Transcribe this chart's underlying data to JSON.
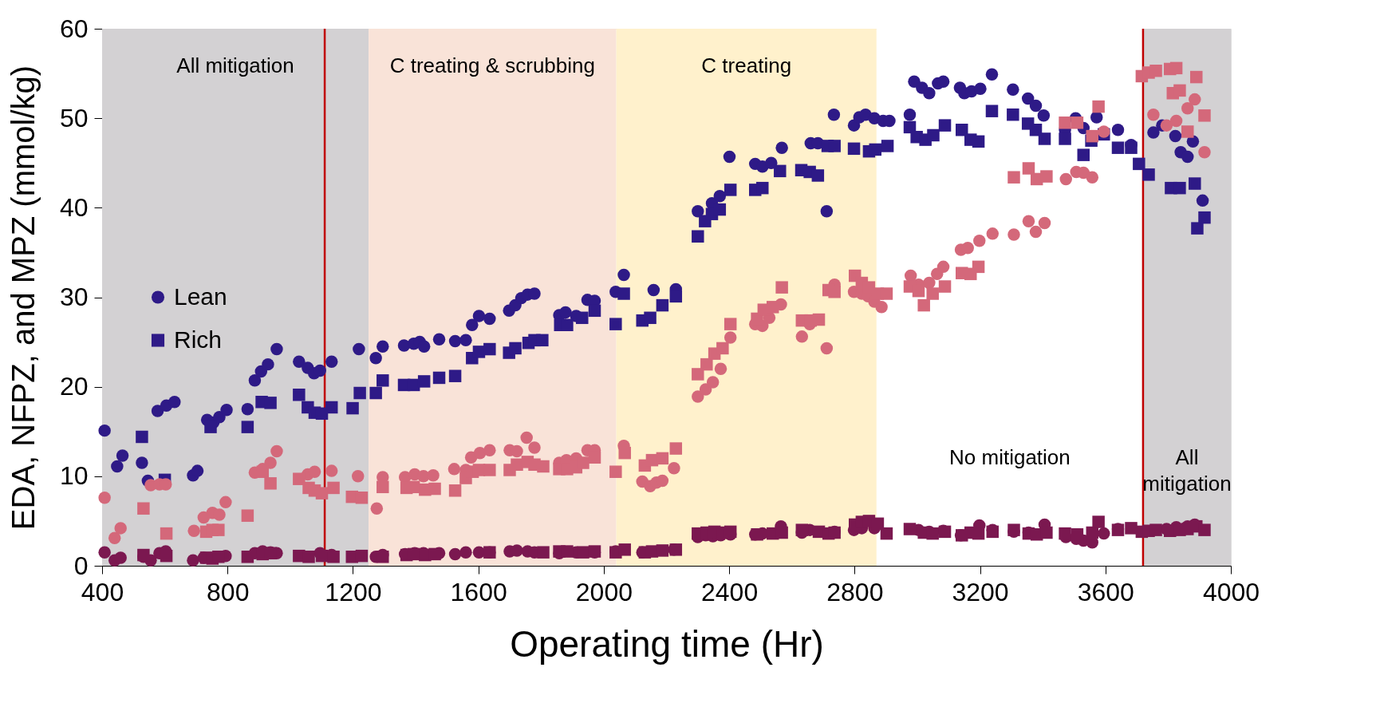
{
  "chart_data": {
    "type": "scatter",
    "xlabel": "Operating time (Hr)",
    "ylabel": "EDA, NFPZ, and MPZ (mmol/kg)",
    "xlim": [
      400,
      4000
    ],
    "xticks": [
      400,
      800,
      1200,
      1600,
      2000,
      2400,
      2800,
      3200,
      3600,
      4000
    ],
    "ylim": [
      0,
      60
    ],
    "yticks": [
      0,
      10,
      20,
      30,
      40,
      50,
      60
    ],
    "grid": false,
    "legend": "left",
    "bands": [
      {
        "axis": "x",
        "from": 400,
        "to": 1250,
        "label": "All mitigation",
        "color": "#d3d1d3"
      },
      {
        "axis": "x",
        "from": 1250,
        "to": 2040,
        "label": "C treating & scrubbing",
        "color": "#f9e3d8"
      },
      {
        "axis": "x",
        "from": 2040,
        "to": 2870,
        "label": "C treating",
        "color": "#fff1cc"
      },
      {
        "axis": "x",
        "from": 2870,
        "to": 3720,
        "label": "No mitigation",
        "color": "#ffffff"
      },
      {
        "axis": "x",
        "from": 3720,
        "to": 4000,
        "label": "All mitigation",
        "color": "#d3d1d3"
      }
    ],
    "ref_lines": [
      {
        "axis": "x",
        "value": 1110,
        "color": "#c00000"
      },
      {
        "axis": "x",
        "value": 3720,
        "color": "#c00000"
      }
    ],
    "series": [
      {
        "name": "Lean",
        "marker": "circle",
        "color": "#2e1a87",
        "x": [
          408,
          448,
          465,
          527,
          546,
          577,
          605,
          631,
          690,
          704,
          735,
          755,
          774,
          797,
          864,
          887,
          907,
          929,
          957,
          1028,
          1056,
          1076,
          1095,
          1132,
          1219,
          1273,
          1295,
          1363,
          1394,
          1413,
          1427,
          1475,
          1526,
          1560,
          1580,
          1602,
          1636,
          1698,
          1718,
          1737,
          1757,
          1779,
          1858,
          1878,
          1912,
          1948,
          1971,
          2038,
          2064,
          2159,
          2230,
          2300,
          2345,
          2370,
          2401,
          2483,
          2506,
          2534,
          2568,
          2660,
          2683,
          2711,
          2734,
          2798,
          2815,
          2835,
          2863,
          2891,
          2911,
          2976,
          2990,
          3015,
          3038,
          3066,
          3083,
          3136,
          3150,
          3173,
          3201,
          3238,
          3305,
          3353,
          3378,
          3403,
          3471,
          3505,
          3530,
          3572,
          3640,
          3682,
          3753,
          3781,
          3823,
          3840,
          3862,
          3879,
          3910
        ],
        "values": [
          15.1,
          11.1,
          12.3,
          11.5,
          9.5,
          17.3,
          17.9,
          18.3,
          10.1,
          10.6,
          16.3,
          16.0,
          16.6,
          17.4,
          17.5,
          20.7,
          21.7,
          22.5,
          24.2,
          22.8,
          22.1,
          21.5,
          21.8,
          22.8,
          24.2,
          23.2,
          24.5,
          24.6,
          24.8,
          25.0,
          24.5,
          25.3,
          25.1,
          25.2,
          26.9,
          27.9,
          27.6,
          28.5,
          29.1,
          29.9,
          30.3,
          30.4,
          28.0,
          28.3,
          27.9,
          29.7,
          29.6,
          30.6,
          32.5,
          30.8,
          30.9,
          39.6,
          40.5,
          41.3,
          45.7,
          44.9,
          44.6,
          45.0,
          46.7,
          47.2,
          47.2,
          39.6,
          50.4,
          49.2,
          50.1,
          50.4,
          50.0,
          49.7,
          49.7,
          50.4,
          54.1,
          53.4,
          52.8,
          53.9,
          54.1,
          53.4,
          52.8,
          53.0,
          53.3,
          54.9,
          53.2,
          52.2,
          51.4,
          50.3,
          48.7,
          50.0,
          48.9,
          50.1,
          48.7,
          47.0,
          48.4,
          49.2,
          48.0,
          46.2,
          45.7,
          47.4,
          40.8
        ]
      },
      {
        "name": "Rich",
        "marker": "square",
        "color": "#2e1a87",
        "x": [
          527,
          600,
          746,
          864,
          909,
          937,
          1028,
          1056,
          1078,
          1101,
          1132,
          1199,
          1222,
          1273,
          1295,
          1363,
          1394,
          1427,
          1475,
          1526,
          1580,
          1602,
          1636,
          1698,
          1718,
          1760,
          1779,
          1804,
          1861,
          1883,
          1931,
          1971,
          2038,
          2064,
          2123,
          2148,
          2187,
          2230,
          2300,
          2323,
          2345,
          2370,
          2404,
          2483,
          2506,
          2562,
          2630,
          2657,
          2683,
          2714,
          2736,
          2798,
          2846,
          2866,
          2905,
          2976,
          2998,
          3026,
          3051,
          3088,
          3142,
          3170,
          3195,
          3238,
          3305,
          3353,
          3378,
          3406,
          3471,
          3530,
          3555,
          3595,
          3640,
          3682,
          3707,
          3738,
          3809,
          3837,
          3885,
          3893,
          3916
        ],
        "values": [
          14.4,
          9.6,
          15.5,
          15.5,
          18.3,
          18.2,
          19.1,
          17.7,
          17.1,
          17.0,
          17.7,
          17.6,
          19.3,
          19.3,
          20.7,
          20.2,
          20.2,
          20.6,
          21.0,
          21.2,
          23.2,
          23.9,
          24.2,
          23.8,
          24.3,
          24.9,
          25.2,
          25.2,
          26.9,
          26.9,
          27.7,
          28.5,
          27.0,
          30.4,
          27.4,
          27.7,
          29.1,
          30.1,
          36.8,
          38.5,
          39.3,
          39.8,
          42.0,
          42.0,
          42.2,
          44.1,
          44.2,
          44.0,
          43.6,
          46.9,
          46.9,
          46.6,
          46.3,
          46.5,
          46.9,
          49.0,
          47.9,
          47.6,
          48.1,
          49.2,
          48.7,
          47.6,
          47.4,
          50.8,
          50.4,
          49.4,
          48.7,
          47.7,
          47.7,
          45.9,
          47.5,
          48.2,
          46.7,
          46.7,
          44.9,
          43.7,
          42.2,
          42.2,
          42.7,
          37.7,
          38.9
        ]
      },
      {
        "name": null,
        "marker": "circle",
        "color": "#d4687a",
        "x": [
          408,
          440,
          459,
          555,
          583,
          603,
          693,
          724,
          752,
          774,
          794,
          887,
          912,
          937,
          957,
          1056,
          1078,
          1132,
          1216,
          1276,
          1295,
          1366,
          1397,
          1425,
          1456,
          1523,
          1560,
          1577,
          1605,
          1636,
          1700,
          1723,
          1754,
          1779,
          1858,
          1881,
          1912,
          1948,
          1971,
          2064,
          2123,
          2148,
          2168,
          2187,
          2224,
          2300,
          2325,
          2348,
          2373,
          2404,
          2483,
          2506,
          2528,
          2565,
          2632,
          2657,
          2711,
          2736,
          2798,
          2823,
          2843,
          2863,
          2886,
          2979,
          3004,
          3038,
          3063,
          3083,
          3139,
          3161,
          3198,
          3240,
          3308,
          3355,
          3378,
          3406,
          3474,
          3507,
          3530,
          3558,
          3595,
          3753,
          3795,
          3826,
          3862,
          3885,
          3916
        ],
        "values": [
          7.6,
          3.1,
          4.2,
          9.0,
          9.1,
          9.1,
          3.9,
          5.4,
          5.9,
          5.7,
          7.1,
          10.4,
          10.8,
          11.5,
          12.8,
          10.2,
          10.5,
          10.6,
          10.0,
          6.4,
          9.9,
          9.9,
          10.2,
          10.0,
          10.1,
          10.8,
          10.7,
          12.1,
          12.6,
          12.9,
          12.9,
          12.8,
          14.3,
          13.2,
          11.5,
          11.8,
          12.0,
          12.9,
          12.9,
          13.4,
          9.4,
          8.9,
          9.3,
          9.5,
          10.9,
          18.9,
          19.7,
          20.5,
          22.0,
          25.5,
          27.0,
          26.8,
          27.7,
          29.2,
          25.6,
          27.0,
          24.3,
          31.4,
          30.6,
          30.4,
          30.1,
          29.5,
          28.9,
          32.4,
          31.4,
          31.6,
          32.6,
          33.4,
          35.3,
          35.5,
          36.3,
          37.1,
          37.0,
          38.5,
          37.3,
          38.3,
          43.2,
          44.0,
          43.9,
          43.4,
          48.5,
          50.4,
          49.2,
          49.7,
          51.1,
          52.1,
          46.2
        ]
      },
      {
        "name": null,
        "marker": "square",
        "color": "#d4687a",
        "x": [
          532,
          605,
          732,
          752,
          771,
          864,
          912,
          937,
          1028,
          1059,
          1078,
          1101,
          1138,
          1197,
          1228,
          1295,
          1371,
          1394,
          1430,
          1461,
          1526,
          1560,
          1582,
          1602,
          1636,
          1700,
          1723,
          1757,
          1779,
          1807,
          1858,
          1883,
          1912,
          1934,
          1971,
          2038,
          2067,
          2131,
          2154,
          2187,
          2230,
          2300,
          2328,
          2353,
          2379,
          2404,
          2489,
          2510,
          2539,
          2568,
          2632,
          2660,
          2686,
          2717,
          2736,
          2801,
          2823,
          2846,
          2874,
          2902,
          2976,
          3004,
          3021,
          3049,
          3088,
          3142,
          3170,
          3195,
          3308,
          3355,
          3381,
          3412,
          3471,
          3510,
          3558,
          3578,
          3716,
          3738,
          3761,
          3806,
          3826,
          3815,
          3837,
          3862,
          3890,
          3916
        ],
        "values": [
          6.4,
          3.6,
          3.8,
          4.0,
          4.0,
          5.6,
          10.5,
          9.2,
          9.7,
          8.7,
          8.4,
          8.1,
          8.7,
          7.7,
          7.6,
          8.8,
          8.7,
          8.8,
          8.5,
          8.6,
          8.4,
          9.8,
          10.5,
          10.7,
          10.7,
          10.7,
          11.3,
          11.6,
          11.3,
          11.1,
          10.8,
          10.8,
          11.0,
          11.5,
          12.1,
          10.5,
          12.6,
          11.2,
          11.8,
          12.0,
          13.1,
          21.4,
          22.5,
          23.7,
          24.3,
          27.0,
          27.6,
          28.6,
          28.9,
          31.1,
          27.4,
          27.4,
          27.5,
          30.8,
          30.6,
          32.4,
          31.6,
          31.1,
          30.4,
          30.4,
          31.2,
          30.7,
          29.1,
          30.4,
          31.2,
          32.7,
          32.6,
          33.4,
          43.4,
          44.4,
          43.2,
          43.5,
          49.5,
          49.5,
          48.0,
          51.3,
          54.7,
          55.1,
          55.3,
          55.5,
          55.6,
          52.8,
          53.1,
          48.5,
          54.6,
          50.3
        ]
      },
      {
        "name": null,
        "marker": "circle",
        "color": "#7b1850",
        "x": [
          408,
          440,
          459,
          532,
          555,
          583,
          603,
          690,
          724,
          794,
          887,
          912,
          937,
          957,
          1095,
          1132,
          1273,
          1295,
          1366,
          1397,
          1425,
          1475,
          1526,
          1560,
          1602,
          1636,
          1700,
          1723,
          1757,
          1779,
          1858,
          1912,
          1971,
          2038,
          2123,
          2224,
          2300,
          2325,
          2348,
          2373,
          2404,
          2483,
          2506,
          2565,
          2632,
          2657,
          2736,
          2798,
          2823,
          2863,
          3004,
          3038,
          3083,
          3139,
          3198,
          3240,
          3308,
          3355,
          3406,
          3474,
          3507,
          3530,
          3558,
          3595,
          3640,
          3795,
          3826,
          3862,
          3885
        ],
        "values": [
          1.5,
          0.6,
          0.9,
          1.0,
          0.6,
          1.4,
          1.6,
          0.6,
          0.9,
          1.1,
          1.4,
          1.6,
          1.5,
          1.4,
          1.4,
          1.2,
          1.0,
          1.2,
          1.3,
          1.4,
          1.4,
          1.4,
          1.3,
          1.5,
          1.5,
          1.5,
          1.6,
          1.7,
          1.6,
          1.5,
          1.4,
          1.5,
          1.5,
          1.6,
          1.5,
          1.8,
          3.2,
          3.4,
          3.3,
          3.4,
          3.5,
          3.5,
          3.6,
          4.4,
          3.7,
          4.0,
          3.8,
          4.0,
          4.2,
          4.2,
          4.0,
          3.8,
          3.9,
          3.4,
          4.5,
          4.0,
          3.8,
          3.7,
          4.6,
          3.2,
          3.0,
          2.8,
          2.6,
          3.6,
          4.1,
          4.1,
          4.3,
          4.4,
          4.6
        ]
      },
      {
        "name": null,
        "marker": "square",
        "color": "#7b1850",
        "x": [
          532,
          605,
          732,
          752,
          771,
          864,
          912,
          937,
          1028,
          1059,
          1101,
          1138,
          1197,
          1228,
          1295,
          1371,
          1394,
          1430,
          1461,
          1636,
          1807,
          1858,
          1883,
          1934,
          1971,
          2038,
          2067,
          2131,
          2154,
          2187,
          2230,
          2300,
          2328,
          2353,
          2379,
          2404,
          2489,
          2539,
          2568,
          2632,
          2686,
          2717,
          2736,
          2801,
          2823,
          2846,
          2874,
          2902,
          2976,
          3021,
          3049,
          3088,
          3142,
          3170,
          3195,
          3240,
          3308,
          3355,
          3381,
          3412,
          3471,
          3510,
          3558,
          3578,
          3640,
          3682,
          3716,
          3738,
          3761,
          3806,
          3837,
          3862,
          3890,
          3916
        ],
        "values": [
          1.2,
          1.1,
          0.9,
          0.8,
          1.0,
          1.0,
          1.3,
          1.4,
          1.1,
          1.0,
          1.1,
          1.0,
          1.0,
          1.1,
          1.0,
          1.2,
          1.3,
          1.2,
          1.3,
          1.5,
          1.5,
          1.6,
          1.6,
          1.5,
          1.6,
          1.5,
          1.8,
          1.5,
          1.6,
          1.7,
          1.8,
          3.6,
          3.7,
          3.8,
          3.7,
          3.8,
          3.5,
          3.6,
          3.7,
          4.0,
          3.8,
          3.6,
          3.7,
          4.6,
          4.9,
          5.0,
          4.7,
          3.6,
          4.1,
          3.7,
          3.6,
          3.8,
          3.4,
          3.7,
          3.6,
          3.8,
          4.0,
          3.6,
          3.5,
          3.7,
          3.6,
          3.5,
          3.7,
          4.9,
          4.0,
          4.2,
          3.8,
          3.9,
          4.0,
          3.9,
          4.0,
          4.1,
          4.4,
          4.0
        ]
      }
    ]
  }
}
